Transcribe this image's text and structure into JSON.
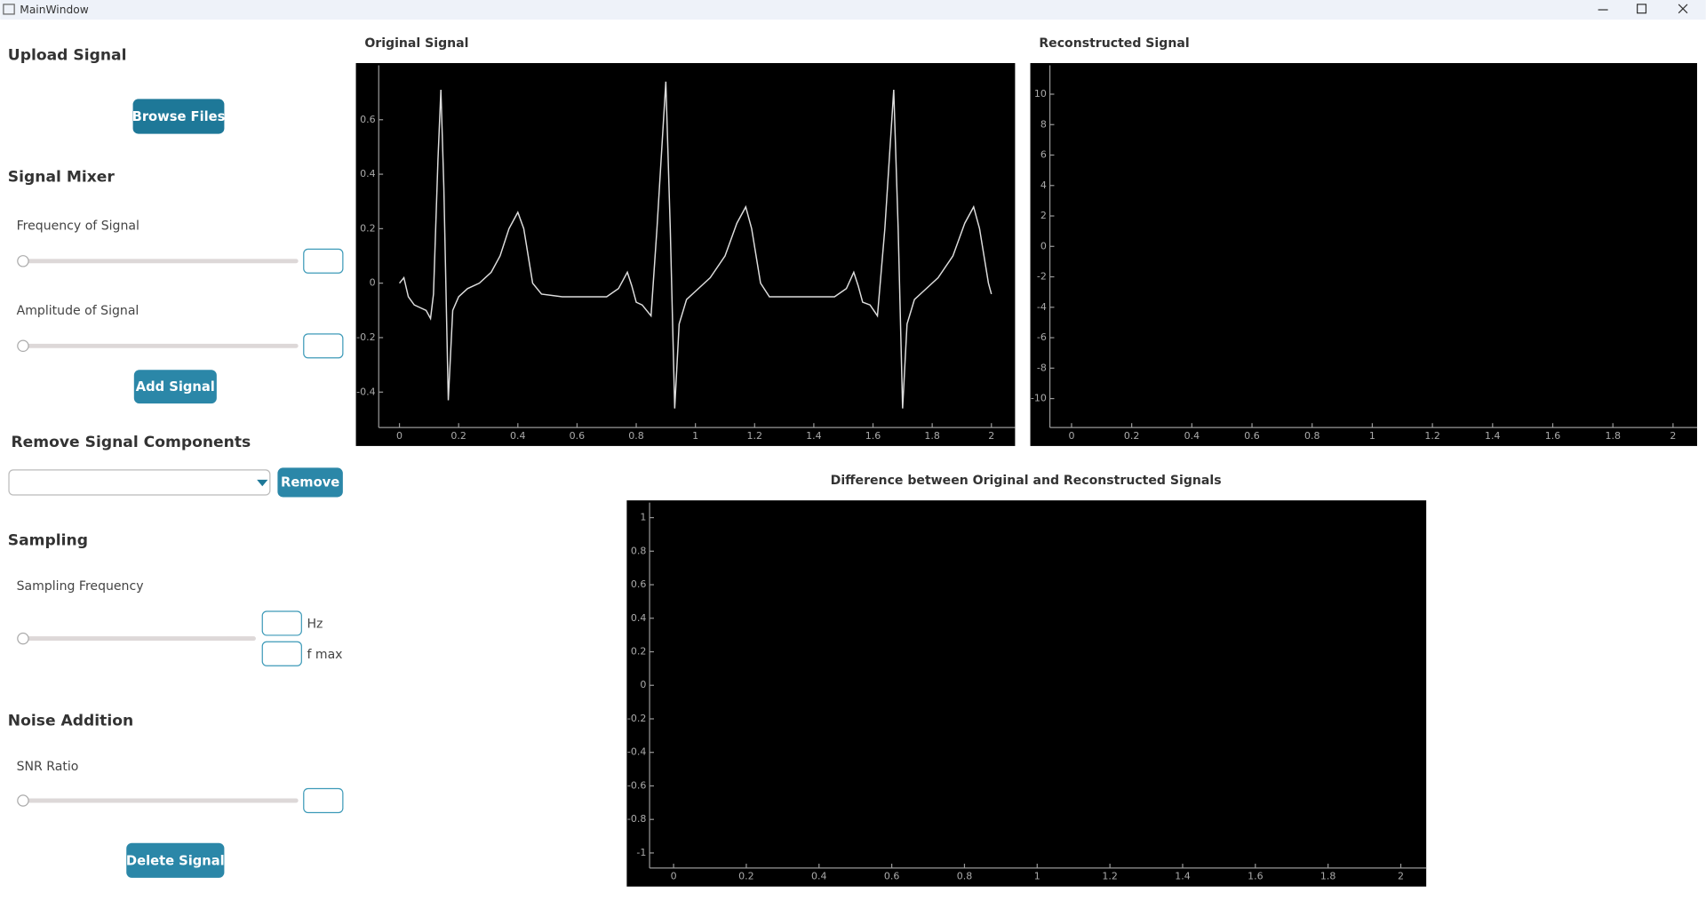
{
  "window": {
    "title": "MainWindow"
  },
  "sidebar": {
    "upload_heading": "Upload Signal",
    "browse_button": "Browse Files",
    "mixer_heading": "Signal Mixer",
    "frequency_label": "Frequency of Signal",
    "amplitude_label": "Amplitude of Signal",
    "add_button": "Add Signal",
    "remove_heading": "Remove Signal Components",
    "remove_button": "Remove",
    "sampling_heading": "Sampling",
    "sampling_label": "Sampling Frequency",
    "hz_unit": "Hz",
    "fmax_unit": "f max",
    "noise_heading": "Noise Addition",
    "snr_label": "SNR Ratio",
    "delete_button": "Delete Signal"
  },
  "plots": [
    {
      "type": "line",
      "title": "Original Signal",
      "xlim": [
        -0.07,
        2.08
      ],
      "ylim": [
        -0.53,
        0.8
      ],
      "xticks": [
        0,
        0.2,
        0.4,
        0.6,
        0.8,
        1,
        1.2,
        1.4,
        1.6,
        1.8,
        2
      ],
      "yticks": [
        -0.4,
        -0.2,
        0,
        0.2,
        0.4,
        0.6
      ],
      "series": [
        {
          "color": "#dddddd",
          "x": [
            0.0,
            0.015,
            0.03,
            0.05,
            0.07,
            0.09,
            0.105,
            0.115,
            0.13,
            0.14,
            0.15,
            0.165,
            0.18,
            0.2,
            0.23,
            0.27,
            0.31,
            0.34,
            0.37,
            0.4,
            0.42,
            0.45,
            0.48,
            0.55,
            0.63,
            0.7,
            0.74,
            0.77,
            0.785,
            0.8,
            0.82,
            0.85,
            0.87,
            0.9,
            0.915,
            0.93,
            0.945,
            0.97,
            1.0,
            1.05,
            1.1,
            1.14,
            1.17,
            1.19,
            1.22,
            1.25,
            1.32,
            1.4,
            1.47,
            1.51,
            1.535,
            1.55,
            1.565,
            1.59,
            1.615,
            1.64,
            1.67,
            1.685,
            1.7,
            1.715,
            1.74,
            1.77,
            1.82,
            1.87,
            1.91,
            1.94,
            1.96,
            1.99,
            2.0
          ],
          "values": [
            0.0,
            0.02,
            -0.05,
            -0.08,
            -0.09,
            -0.1,
            -0.13,
            -0.04,
            0.45,
            0.71,
            0.35,
            -0.43,
            -0.1,
            -0.05,
            -0.02,
            0.0,
            0.04,
            0.1,
            0.2,
            0.26,
            0.2,
            0.0,
            -0.04,
            -0.05,
            -0.05,
            -0.05,
            -0.02,
            0.04,
            -0.01,
            -0.07,
            -0.08,
            -0.12,
            0.2,
            0.74,
            0.2,
            -0.46,
            -0.15,
            -0.06,
            -0.03,
            0.02,
            0.1,
            0.22,
            0.28,
            0.2,
            0.0,
            -0.05,
            -0.05,
            -0.05,
            -0.05,
            -0.02,
            0.04,
            -0.01,
            -0.07,
            -0.08,
            -0.12,
            0.2,
            0.71,
            0.2,
            -0.46,
            -0.15,
            -0.06,
            -0.03,
            0.02,
            0.1,
            0.22,
            0.28,
            0.2,
            0.0,
            -0.04
          ]
        }
      ]
    },
    {
      "type": "line",
      "title": "Reconstructed Signal",
      "xlim": [
        -0.072,
        2.08
      ],
      "ylim": [
        -11.9,
        11.9
      ],
      "xticks": [
        0,
        0.2,
        0.4,
        0.6,
        0.8,
        1,
        1.2,
        1.4,
        1.6,
        1.8,
        2
      ],
      "yticks": [
        -10,
        -8,
        -6,
        -4,
        -2,
        0,
        2,
        4,
        6,
        8,
        10
      ],
      "series": []
    },
    {
      "type": "line",
      "title": "Difference between Original and Reconstructed Signals",
      "xlim": [
        -0.066,
        2.07
      ],
      "ylim": [
        -1.09,
        1.09
      ],
      "xticks": [
        0,
        0.2,
        0.4,
        0.6,
        0.8,
        1,
        1.2,
        1.4,
        1.6,
        1.8,
        2
      ],
      "yticks": [
        -1,
        -0.8,
        -0.6,
        -0.4,
        -0.2,
        0,
        0.2,
        0.4,
        0.6,
        0.8,
        1
      ],
      "series": []
    }
  ]
}
